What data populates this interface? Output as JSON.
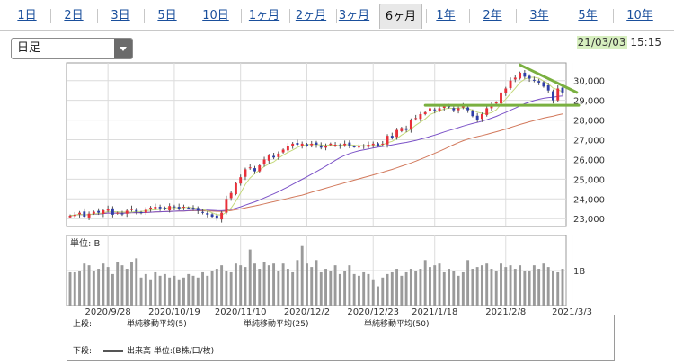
{
  "tabs": [
    {
      "label": "1日"
    },
    {
      "label": "2日"
    },
    {
      "label": "3日"
    },
    {
      "label": "5日"
    },
    {
      "label": "10日"
    },
    {
      "label": "1ヶ月"
    },
    {
      "label": "2ヶ月"
    },
    {
      "label": "3ヶ月"
    },
    {
      "label": "6ヶ月"
    },
    {
      "label": "1年"
    },
    {
      "label": "2年"
    },
    {
      "label": "3年"
    },
    {
      "label": "5年"
    },
    {
      "label": "10年"
    }
  ],
  "active_tab": "6ヶ月",
  "period_select": {
    "value": "日足"
  },
  "timestamp": {
    "date": "21/03/03",
    "time": "15:15"
  },
  "colors": {
    "ma5": "#c4d97a",
    "ma25": "#7b52c7",
    "ma50": "#d2795c",
    "up": "#e8303a",
    "down": "#2f3fa8",
    "volume": "#9a9a9a",
    "annotation": "#7ab040"
  },
  "chart_data": [
    {
      "type": "candlestick",
      "y_ticks": [
        "30,000",
        "29,000",
        "28,000",
        "27,000",
        "26,000",
        "25,000",
        "24,000",
        "23,000"
      ],
      "y_tick_values": [
        30000,
        29000,
        28000,
        27000,
        26000,
        25000,
        24000,
        23000
      ],
      "ylim": [
        22600,
        30900
      ],
      "x_labels": [
        "2020/9/28",
        "2020/10/19",
        "2020/11/10",
        "2020/12/2",
        "2020/12/23",
        "2021/1/18",
        "2021/2/8",
        "2021/3/3"
      ],
      "x_label_positions": [
        8,
        22,
        36,
        50,
        64,
        77,
        92,
        106
      ],
      "series": [
        {
          "name": "単純移動平均(5)"
        },
        {
          "name": "単純移動平均(25)"
        },
        {
          "name": "単純移動平均(50)"
        }
      ],
      "closes": [
        23150,
        23200,
        23300,
        23100,
        23250,
        23350,
        23300,
        23420,
        23500,
        23200,
        23300,
        23250,
        23400,
        23500,
        23350,
        23280,
        23450,
        23560,
        23600,
        23520,
        23480,
        23640,
        23580,
        23500,
        23600,
        23550,
        23500,
        23400,
        23300,
        23200,
        23100,
        23000,
        23300,
        24000,
        24300,
        24800,
        25100,
        25500,
        25600,
        25400,
        25700,
        26000,
        26200,
        26100,
        26300,
        26500,
        26700,
        26800,
        26750,
        26800,
        26700,
        26800,
        26750,
        26600,
        26700,
        26800,
        26750,
        26700,
        26800,
        26700,
        26650,
        26650,
        26700,
        26750,
        26800,
        26700,
        26800,
        27200,
        27100,
        27500,
        27600,
        27500,
        28000,
        28100,
        28300,
        28400,
        28600,
        28500,
        28600,
        28700,
        28650,
        28500,
        28600,
        28700,
        28500,
        28200,
        28000,
        28300,
        28600,
        28800,
        28900,
        29400,
        29600,
        30000,
        30150,
        30400,
        30200,
        30100,
        30000,
        29900,
        29700,
        29500,
        29000,
        29600,
        29400
      ],
      "annotations": [
        {
          "type": "trendline",
          "from": [
            95,
            30800
          ],
          "to": [
            107,
            29400
          ]
        },
        {
          "type": "hline",
          "from": [
            75,
            28750
          ],
          "to": [
            110,
            28750
          ]
        }
      ]
    },
    {
      "type": "bar",
      "unit_label": "単位: B",
      "y_ticks": [
        "1B"
      ],
      "y_tick_values": [
        1
      ],
      "ylim": [
        0,
        2.0
      ],
      "values": [
        0.95,
        0.95,
        1.0,
        1.2,
        1.15,
        1.0,
        1.05,
        1.2,
        1.1,
        0.9,
        1.25,
        1.15,
        1.05,
        1.25,
        1.35,
        0.8,
        0.9,
        0.75,
        0.95,
        0.85,
        0.9,
        0.8,
        0.85,
        0.75,
        0.8,
        0.9,
        0.85,
        0.8,
        0.95,
        0.85,
        1.0,
        1.05,
        1.15,
        1.0,
        0.95,
        1.2,
        1.15,
        1.1,
        1.6,
        1.2,
        1.05,
        1.25,
        1.15,
        1.2,
        1.0,
        1.2,
        1.05,
        0.95,
        1.3,
        1.7,
        1.2,
        1.1,
        1.3,
        0.95,
        1.05,
        1.0,
        1.15,
        0.9,
        1.0,
        1.15,
        0.9,
        0.85,
        0.95,
        0.9,
        0.75,
        0.55,
        0.8,
        0.9,
        0.95,
        1.05,
        0.85,
        0.95,
        1.05,
        1.0,
        1.05,
        1.3,
        1.1,
        1.15,
        1.2,
        0.95,
        1.05,
        1.0,
        0.85,
        0.95,
        1.3,
        1.05,
        1.1,
        1.15,
        1.2,
        1.05,
        1.0,
        1.2,
        1.1,
        1.15,
        1.05,
        1.15,
        1.0,
        1.0,
        1.15,
        1.05,
        1.2,
        1.1,
        1.0,
        0.95,
        1.05
      ]
    }
  ],
  "legend": {
    "upper_label": "上段:",
    "lower_label": "下段:",
    "ma5": "単純移動平均(5)",
    "ma25": "単純移動平均(25)",
    "ma50": "単純移動平均(50)",
    "volume": "出来高 単位:(B株/口/枚)"
  }
}
